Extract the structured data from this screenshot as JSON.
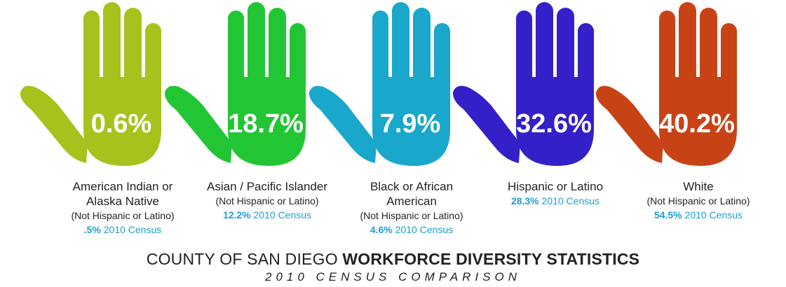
{
  "chart_data": {
    "type": "pictogram",
    "title_regular": "COUNTY OF SAN DIEGO ",
    "title_bold": "WORKFORCE DIVERSITY STATISTICS",
    "subtitle": "2010 CENSUS COMPARISON",
    "census_suffix": " 2010 Census",
    "colors": {
      "census_text": "#1a9fd4"
    },
    "categories": [
      {
        "name_lines": [
          "American Indian or",
          "Alaska Native"
        ],
        "qualifier": "(Not Hispanic or Latino)",
        "workforce_pct": 0.6,
        "workforce_label": "0.6%",
        "census_pct": 0.5,
        "census_label": ".5%",
        "color": "#a5c31c"
      },
      {
        "name_lines": [
          "Asian / Pacific Islander"
        ],
        "qualifier": "(Not Hispanic or Latino)",
        "workforce_pct": 18.7,
        "workforce_label": "18.7%",
        "census_pct": 12.2,
        "census_label": "12.2%",
        "color": "#22c634"
      },
      {
        "name_lines": [
          "Black or African",
          "American"
        ],
        "qualifier": "(Not Hispanic or Latino)",
        "workforce_pct": 7.9,
        "workforce_label": "7.9%",
        "census_pct": 4.6,
        "census_label": "4.6%",
        "color": "#1aa7cc"
      },
      {
        "name_lines": [
          "Hispanic or Latino"
        ],
        "qualifier": "",
        "workforce_pct": 32.6,
        "workforce_label": "32.6%",
        "census_pct": 28.3,
        "census_label": "28.3%",
        "color": "#3320c8"
      },
      {
        "name_lines": [
          "White"
        ],
        "qualifier": "(Not Hispanic or Latino)",
        "workforce_pct": 40.2,
        "workforce_label": "40.2%",
        "census_pct": 54.5,
        "census_label": "54.5%",
        "color": "#c74316"
      }
    ]
  }
}
